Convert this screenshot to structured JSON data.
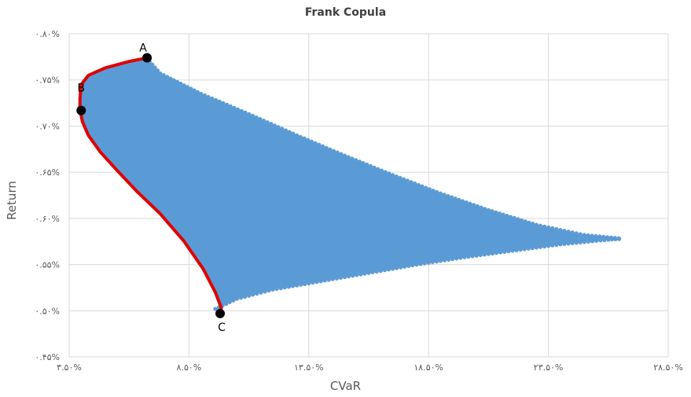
{
  "chart_data": {
    "type": "scatter",
    "title": "Frank Copula",
    "xlabel": "CVaR",
    "ylabel": "Return",
    "xlim": [
      3.5,
      28.5
    ],
    "ylim": [
      0.045,
      0.08
    ],
    "x_ticks": [
      3.5,
      8.5,
      13.5,
      18.5,
      23.5,
      28.5
    ],
    "x_tick_labels": [
      "۳.۵۰%",
      "۸.۵۰%",
      "۱۳.۵۰%",
      "۱۸.۵۰%",
      "۲۳.۵۰%",
      "۲۸.۵۰%"
    ],
    "y_ticks": [
      0.045,
      0.05,
      0.055,
      0.06,
      0.065,
      0.07,
      0.075,
      0.08
    ],
    "y_tick_labels": [
      "۰.۴۵%",
      "۰.۵۰%",
      "۰.۵۵%",
      "۰.۶۰%",
      "۰.۶۵%",
      "۰.۷۰%",
      "۰.۷۵%",
      "۰.۸۰%"
    ],
    "grid": true,
    "series": [
      {
        "color": "#5B9BD5",
        "region": {
          "upper": [
            [
              6.75,
              0.0773
            ],
            [
              7.3,
              0.0757
            ],
            [
              9.0,
              0.0735
            ],
            [
              11.0,
              0.0713
            ],
            [
              13.0,
              0.069
            ],
            [
              15.0,
              0.0668
            ],
            [
              17.0,
              0.0647
            ],
            [
              19.0,
              0.0627
            ],
            [
              21.0,
              0.0609
            ],
            [
              23.0,
              0.0593
            ],
            [
              25.0,
              0.0582
            ],
            [
              26.6,
              0.0578
            ]
          ],
          "lower": [
            [
              9.6,
              0.0502
            ],
            [
              10.5,
              0.0513
            ],
            [
              12.0,
              0.0523
            ],
            [
              14.0,
              0.0532
            ],
            [
              16.0,
              0.0541
            ],
            [
              18.0,
              0.055
            ],
            [
              20.0,
              0.0558
            ],
            [
              22.0,
              0.0565
            ],
            [
              24.0,
              0.0572
            ],
            [
              26.0,
              0.0577
            ],
            [
              26.6,
              0.0578
            ]
          ]
        }
      },
      {
        "color": "#E00000",
        "points": [
          [
            6.75,
            0.0774
          ],
          [
            6.0,
            0.077
          ],
          [
            5.0,
            0.0763
          ],
          [
            4.3,
            0.0755
          ],
          [
            4.0,
            0.0745
          ],
          [
            3.95,
            0.073
          ],
          [
            3.95,
            0.0718
          ],
          [
            4.05,
            0.0705
          ],
          [
            4.3,
            0.069
          ],
          [
            4.8,
            0.0672
          ],
          [
            5.5,
            0.0652
          ],
          [
            6.3,
            0.063
          ],
          [
            7.3,
            0.0605
          ],
          [
            8.3,
            0.0575
          ],
          [
            9.1,
            0.0545
          ],
          [
            9.6,
            0.052
          ],
          [
            9.85,
            0.0503
          ]
        ]
      }
    ],
    "annotations": [
      {
        "label": "A",
        "x": 6.75,
        "y": 0.0774,
        "label_side": "above-left"
      },
      {
        "label": "B",
        "x": 4.0,
        "y": 0.0717,
        "label_side": "above"
      },
      {
        "label": "C",
        "x": 9.8,
        "y": 0.0497,
        "label_side": "below"
      }
    ]
  }
}
